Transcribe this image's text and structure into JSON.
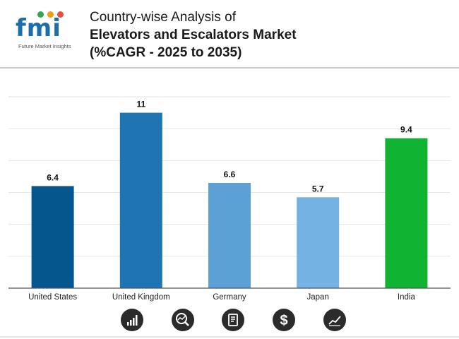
{
  "header": {
    "logo_text": "fmi",
    "logo_subtitle": "Future Market Insights",
    "title_line1": "Country-wise Analysis of",
    "title_line2": "Elevators and Escalators Market",
    "title_line3": "(%CAGR - 2025 to 2035)"
  },
  "chart_data": {
    "type": "bar",
    "title": "Country-wise Analysis of Elevators and Escalators Market (%CAGR - 2025 to 2035)",
    "categories": [
      "United States",
      "United Kingdom",
      "Germany",
      "Japan",
      "India"
    ],
    "values": [
      6.4,
      11,
      6.6,
      5.7,
      9.4
    ],
    "labels": [
      "6.4",
      "11",
      "6.6",
      "5.7",
      "9.4"
    ],
    "colors": [
      "#04568c",
      "#1f74b3",
      "#5ca1d6",
      "#74b2e3",
      "#10b432"
    ],
    "xlabel": "",
    "ylabel": "",
    "ylim": [
      0,
      12
    ],
    "grid": true
  },
  "footer": {
    "icons": [
      "growth-chart-icon",
      "magnifier-analysis-icon",
      "report-document-icon",
      "dollar-icon",
      "trend-line-icon"
    ]
  }
}
